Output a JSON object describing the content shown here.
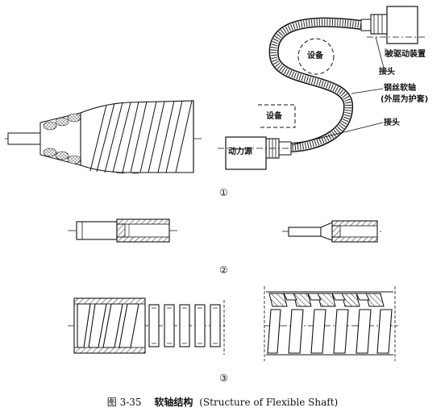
{
  "figure": {
    "caption_number": "图 3-35",
    "caption_title": "软轴结构",
    "caption_english": "(Structure of Flexible Shaft)"
  },
  "panel1": {
    "number": "①",
    "labels": {
      "driven_device": "被驱动装置",
      "joint_top": "接头",
      "equipment_top": "设备",
      "equipment_mid": "设备",
      "steel_wire_shaft": "钢丝软轴",
      "outer_layer_note": "(外层为护套)",
      "joint_bottom": "接头",
      "power_source": "动力源"
    }
  },
  "panel2": {
    "number": "②"
  },
  "panel3": {
    "number": "③"
  }
}
